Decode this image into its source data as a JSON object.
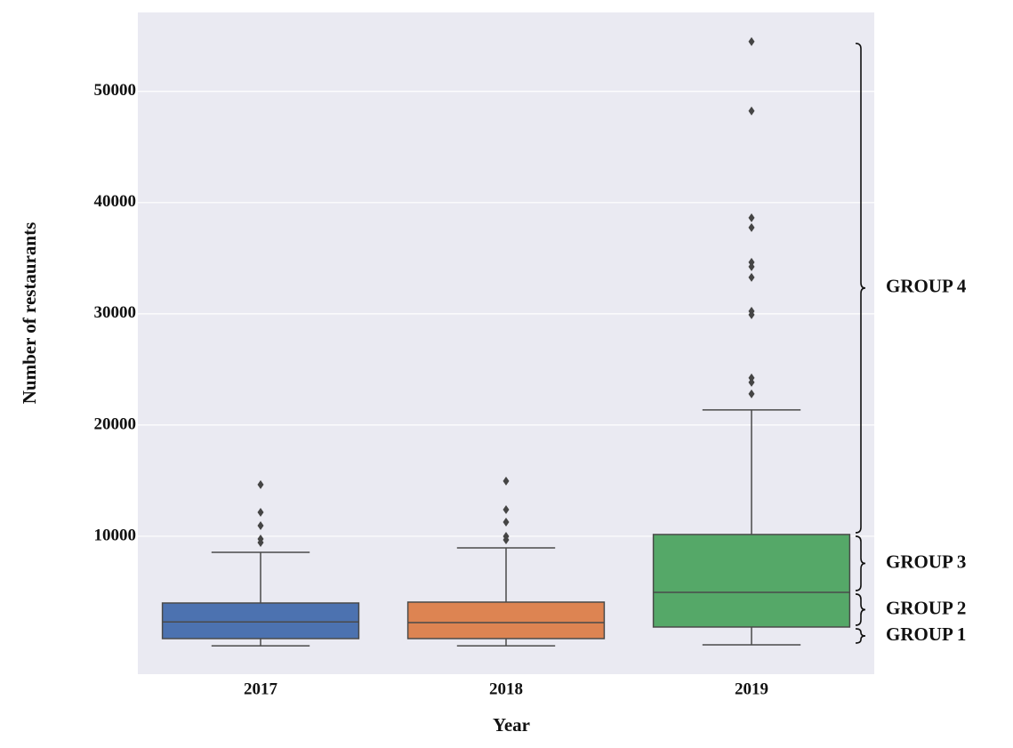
{
  "chart_data": {
    "type": "box",
    "x_label": "Year",
    "y_label": "Number of restaurants",
    "categories": [
      "2017",
      "2018",
      "2019"
    ],
    "colors": [
      "#4c72b0",
      "#dd8452",
      "#55a868"
    ],
    "boxes": [
      {
        "whislo": 150,
        "q1": 800,
        "med": 2300,
        "q3": 4000,
        "whishi": 8560,
        "fliers": [
          14640,
          12160,
          10960,
          9760,
          9440
        ]
      },
      {
        "whislo": 150,
        "q1": 800,
        "med": 2240,
        "q3": 4080,
        "whishi": 8960,
        "fliers": [
          14960,
          12400,
          11280,
          10000,
          9680
        ]
      },
      {
        "whislo": 240,
        "q1": 1840,
        "med": 4960,
        "q3": 10160,
        "whishi": 21360,
        "fliers": [
          54480,
          48240,
          38640,
          37760,
          34640,
          34240,
          33280,
          30240,
          29920,
          24240,
          23840,
          22800
        ]
      }
    ],
    "ylim": [
      -2400,
      57100
    ],
    "yticks": [
      10000,
      20000,
      30000,
      40000,
      50000
    ],
    "grid": true,
    "annotations": [
      "GROUP 1",
      "GROUP 2",
      "GROUP 3",
      "GROUP 4"
    ]
  }
}
